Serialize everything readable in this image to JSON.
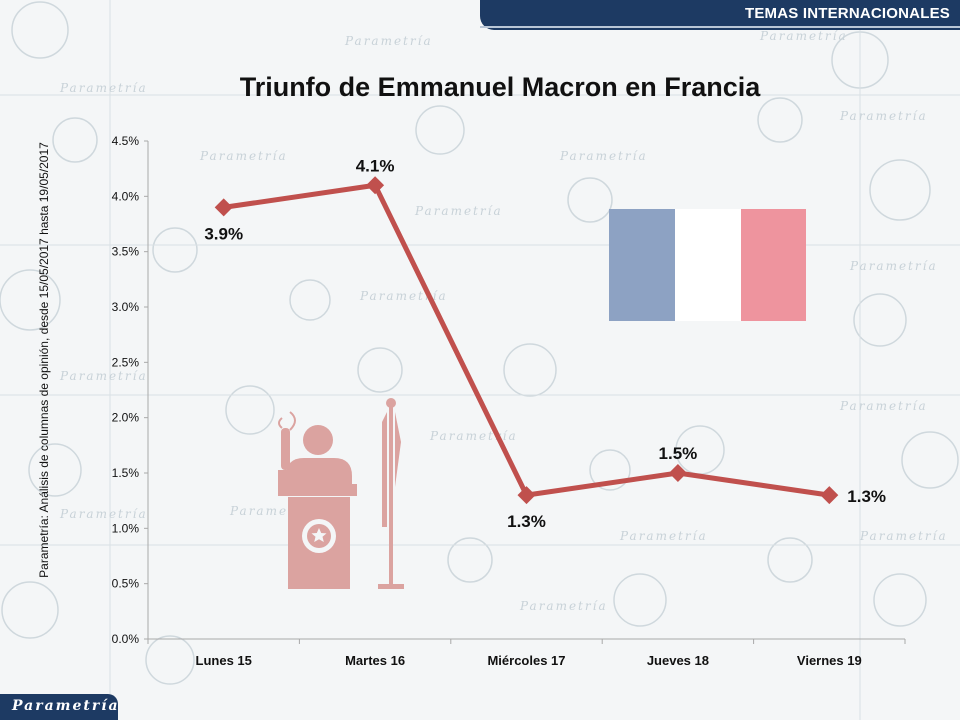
{
  "header": {
    "section_label": "TEMAS INTERNACIONALES"
  },
  "source_note": "Parametría: Análisis de columnas de opinión, desde 15/05/2017 hasta 19/05/2017",
  "brand": {
    "logo_text": "Parametría"
  },
  "watermark": {
    "text": "Parametría"
  },
  "colors": {
    "line": "#c0504d",
    "header_bg": "#1d3a63",
    "flag_blue": "#8da2c3",
    "flag_white": "#ffffff",
    "flag_red": "#ee949e",
    "icon": "#dba3a0"
  },
  "icons": [
    "speaker-at-podium-icon",
    "flag-on-pole-icon",
    "france-flag-icon"
  ],
  "chart_data": {
    "type": "line",
    "title": "Triunfo de Emmanuel Macron en Francia",
    "categories": [
      "Lunes 15",
      "Martes 16",
      "Miércoles 17",
      "Jueves 18",
      "Viernes 19"
    ],
    "values": [
      3.9,
      4.1,
      1.3,
      1.5,
      1.3
    ],
    "data_labels": [
      "3.9%",
      "4.1%",
      "1.3%",
      "1.5%",
      "1.3%"
    ],
    "ylim": [
      0,
      4.5
    ],
    "yticks": [
      "0.0%",
      "0.5%",
      "1.0%",
      "1.5%",
      "2.0%",
      "2.5%",
      "3.0%",
      "3.5%",
      "4.0%",
      "4.5%"
    ],
    "xlabel": "",
    "ylabel": "",
    "grid": false,
    "legend": "none"
  }
}
